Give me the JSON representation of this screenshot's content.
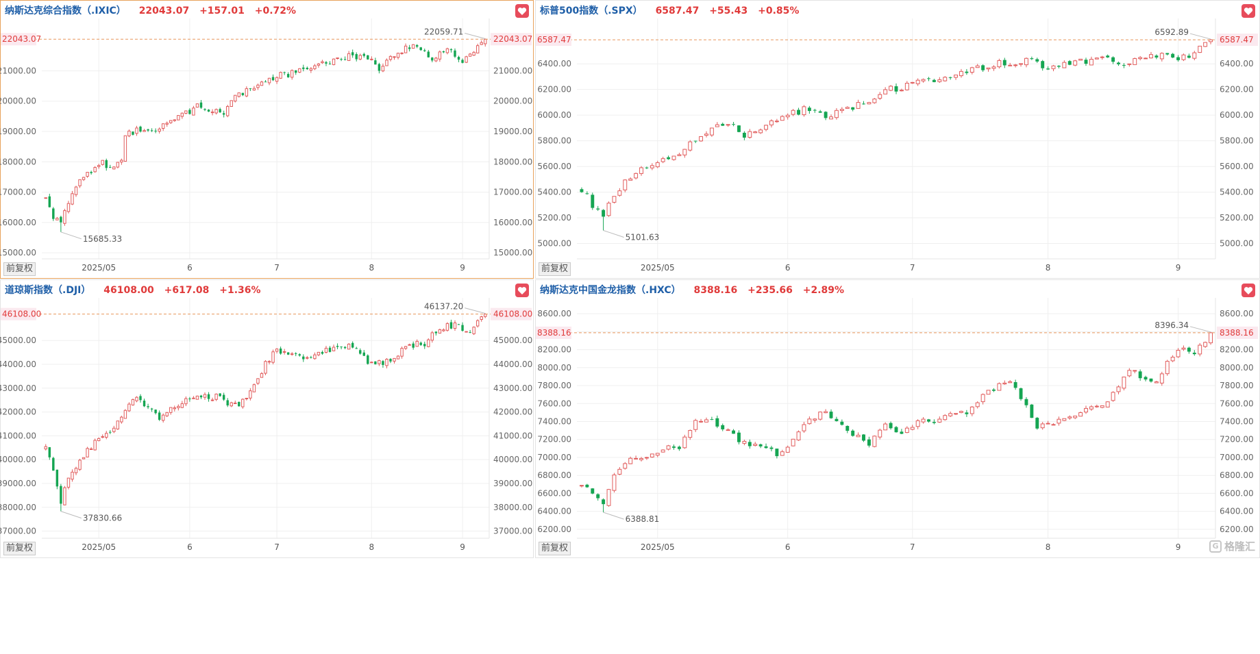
{
  "panels": [
    {
      "name": "纳斯达克综合指数（.IXIC）",
      "price": "22043.07",
      "change": "+157.01",
      "percent": "+0.72%",
      "adjust_button": "前复权",
      "active": true,
      "chart_data": {
        "type": "candlestick",
        "ylim": [
          14800,
          22500
        ],
        "y_ticks": [
          15000,
          16000,
          17000,
          18000,
          19000,
          20000,
          21000
        ],
        "y_tick_labels": [
          "15000.00",
          "16000.00",
          "17000.00",
          "18000.00",
          "19000.00",
          "20000.00",
          "21000.00"
        ],
        "x_ticks": [
          {
            "i": 14,
            "label": "2025/05"
          },
          {
            "i": 38,
            "label": "6"
          },
          {
            "i": 61,
            "label": "7"
          },
          {
            "i": 86,
            "label": "8"
          },
          {
            "i": 110,
            "label": "9"
          }
        ],
        "n_candles": 117,
        "start": 16800,
        "low_point": 15685.33,
        "low_index": 4,
        "anchors": [
          [
            0,
            16800
          ],
          [
            2,
            16200
          ],
          [
            4,
            15900
          ],
          [
            6,
            16700
          ],
          [
            10,
            17500
          ],
          [
            13,
            17700
          ],
          [
            15,
            17950
          ],
          [
            18,
            17800
          ],
          [
            20,
            18000
          ],
          [
            21,
            18800
          ],
          [
            24,
            19100
          ],
          [
            28,
            19000
          ],
          [
            32,
            19200
          ],
          [
            36,
            19500
          ],
          [
            40,
            19800
          ],
          [
            44,
            19700
          ],
          [
            47,
            19600
          ],
          [
            50,
            20100
          ],
          [
            55,
            20500
          ],
          [
            60,
            20800
          ],
          [
            65,
            20900
          ],
          [
            70,
            21100
          ],
          [
            75,
            21300
          ],
          [
            80,
            21500
          ],
          [
            86,
            21350
          ],
          [
            88,
            21100
          ],
          [
            92,
            21500
          ],
          [
            96,
            21800
          ],
          [
            100,
            21700
          ],
          [
            102,
            21400
          ],
          [
            106,
            21650
          ],
          [
            108,
            21550
          ],
          [
            110,
            21200
          ],
          [
            112,
            21600
          ],
          [
            114,
            21800
          ],
          [
            116,
            22043.07
          ]
        ],
        "high_point": 22059.71,
        "last_price": 22043.07,
        "last_price_label": "22043.07",
        "high_label": "22059.71",
        "low_label": "15685.33",
        "colors": {
          "up": "#e15b5b",
          "down": "#15a552",
          "ref_line": "#e8955a",
          "price_tag": "#e03a3a"
        }
      }
    },
    {
      "name": "标普500指数（.SPX）",
      "price": "6587.47",
      "change": "+55.43",
      "percent": "+0.85%",
      "adjust_button": "前复权",
      "active": false,
      "chart_data": {
        "type": "candlestick",
        "ylim": [
          4880,
          6700
        ],
        "y_ticks": [
          5000,
          5200,
          5400,
          5600,
          5800,
          6000,
          6200,
          6400
        ],
        "y_tick_labels": [
          "5000.00",
          "5200.00",
          "5400.00",
          "5600.00",
          "5800.00",
          "6000.00",
          "6200.00",
          "6400.00"
        ],
        "x_ticks": [
          {
            "i": 14,
            "label": "2025/05"
          },
          {
            "i": 38,
            "label": "6"
          },
          {
            "i": 61,
            "label": "7"
          },
          {
            "i": 86,
            "label": "8"
          },
          {
            "i": 110,
            "label": "9"
          }
        ],
        "n_candles": 117,
        "start": 5420,
        "low_point": 5101.63,
        "low_index": 4,
        "anchors": [
          [
            0,
            5420
          ],
          [
            2,
            5300
          ],
          [
            4,
            5200
          ],
          [
            6,
            5380
          ],
          [
            10,
            5560
          ],
          [
            14,
            5650
          ],
          [
            18,
            5700
          ],
          [
            20,
            5800
          ],
          [
            24,
            5900
          ],
          [
            27,
            5950
          ],
          [
            30,
            5850
          ],
          [
            33,
            5900
          ],
          [
            37,
            5980
          ],
          [
            41,
            6040
          ],
          [
            45,
            6000
          ],
          [
            48,
            6020
          ],
          [
            52,
            6100
          ],
          [
            57,
            6200
          ],
          [
            62,
            6250
          ],
          [
            67,
            6300
          ],
          [
            72,
            6350
          ],
          [
            77,
            6400
          ],
          [
            83,
            6420
          ],
          [
            86,
            6350
          ],
          [
            90,
            6400
          ],
          [
            96,
            6450
          ],
          [
            100,
            6400
          ],
          [
            104,
            6450
          ],
          [
            108,
            6480
          ],
          [
            110,
            6420
          ],
          [
            114,
            6520
          ],
          [
            116,
            6587.47
          ]
        ],
        "high_point": 6592.89,
        "last_price": 6587.47,
        "last_price_label": "6587.47",
        "high_label": "6592.89",
        "low_label": "5101.63",
        "colors": {
          "up": "#e15b5b",
          "down": "#15a552",
          "ref_line": "#e8955a",
          "price_tag": "#e03a3a"
        }
      }
    },
    {
      "name": "道琼斯指数（.DJI）",
      "price": "46108.00",
      "change": "+617.08",
      "percent": "+1.36%",
      "adjust_button": "前复权",
      "active": false,
      "chart_data": {
        "type": "candlestick",
        "ylim": [
          36700,
          46500
        ],
        "y_ticks": [
          37000,
          38000,
          39000,
          40000,
          41000,
          42000,
          43000,
          44000,
          45000
        ],
        "y_tick_labels": [
          "37000.00",
          "38000.00",
          "39000.00",
          "40000.00",
          "41000.00",
          "42000.00",
          "43000.00",
          "44000.00",
          "45000.00"
        ],
        "x_ticks": [
          {
            "i": 14,
            "label": "2025/05"
          },
          {
            "i": 38,
            "label": "6"
          },
          {
            "i": 61,
            "label": "7"
          },
          {
            "i": 86,
            "label": "8"
          },
          {
            "i": 110,
            "label": "9"
          }
        ],
        "n_candles": 117,
        "start": 40500,
        "low_point": 37830.66,
        "low_index": 4,
        "anchors": [
          [
            0,
            40500
          ],
          [
            2,
            39500
          ],
          [
            4,
            38200
          ],
          [
            6,
            39300
          ],
          [
            9,
            40000
          ],
          [
            12,
            40500
          ],
          [
            15,
            41000
          ],
          [
            18,
            41200
          ],
          [
            21,
            42200
          ],
          [
            24,
            42500
          ],
          [
            27,
            42100
          ],
          [
            30,
            41700
          ],
          [
            34,
            42200
          ],
          [
            38,
            42500
          ],
          [
            42,
            42700
          ],
          [
            46,
            42600
          ],
          [
            49,
            42300
          ],
          [
            52,
            42400
          ],
          [
            55,
            43100
          ],
          [
            58,
            44000
          ],
          [
            61,
            44600
          ],
          [
            64,
            44500
          ],
          [
            68,
            44300
          ],
          [
            72,
            44400
          ],
          [
            76,
            44700
          ],
          [
            80,
            44800
          ],
          [
            83,
            44400
          ],
          [
            86,
            44000
          ],
          [
            90,
            44100
          ],
          [
            94,
            44600
          ],
          [
            98,
            44900
          ],
          [
            100,
            44900
          ],
          [
            103,
            45400
          ],
          [
            106,
            45600
          ],
          [
            109,
            45600
          ],
          [
            111,
            45300
          ],
          [
            114,
            45700
          ],
          [
            116,
            46108
          ]
        ],
        "high_point": 46137.2,
        "last_price": 46108.0,
        "last_price_label": "46108.00",
        "high_label": "46137.20",
        "low_label": "37830.66",
        "colors": {
          "up": "#e15b5b",
          "down": "#15a552",
          "ref_line": "#e8955a",
          "price_tag": "#e03a3a"
        }
      }
    },
    {
      "name": "纳斯达克中国金龙指数（.HXC）",
      "price": "8388.16",
      "change": "+235.66",
      "percent": "+2.89%",
      "adjust_button": "前复权",
      "active": false,
      "chart_data": {
        "type": "candlestick",
        "ylim": [
          6100,
          8700
        ],
        "y_ticks": [
          6200,
          6400,
          6600,
          6800,
          7000,
          7200,
          7400,
          7600,
          7800,
          8000,
          8200,
          8400,
          8600
        ],
        "y_tick_labels": [
          "6200.00",
          "6400.00",
          "6600.00",
          "6800.00",
          "7000.00",
          "7200.00",
          "7400.00",
          "7600.00",
          "7800.00",
          "8000.00",
          "8200.00",
          "8400.00",
          "8600.00"
        ],
        "x_ticks": [
          {
            "i": 14,
            "label": "2025/05"
          },
          {
            "i": 38,
            "label": "6"
          },
          {
            "i": 61,
            "label": "7"
          },
          {
            "i": 86,
            "label": "8"
          },
          {
            "i": 110,
            "label": "9"
          }
        ],
        "n_candles": 117,
        "start": 6700,
        "low_point": 6388.81,
        "low_index": 4,
        "anchors": [
          [
            0,
            6700
          ],
          [
            2,
            6600
          ],
          [
            4,
            6500
          ],
          [
            6,
            6800
          ],
          [
            8,
            6950
          ],
          [
            12,
            7000
          ],
          [
            15,
            7100
          ],
          [
            18,
            7100
          ],
          [
            21,
            7400
          ],
          [
            24,
            7420
          ],
          [
            27,
            7300
          ],
          [
            30,
            7150
          ],
          [
            33,
            7100
          ],
          [
            36,
            7050
          ],
          [
            39,
            7200
          ],
          [
            42,
            7400
          ],
          [
            45,
            7500
          ],
          [
            47,
            7400
          ],
          [
            50,
            7250
          ],
          [
            53,
            7150
          ],
          [
            56,
            7350
          ],
          [
            59,
            7300
          ],
          [
            62,
            7400
          ],
          [
            65,
            7380
          ],
          [
            68,
            7500
          ],
          [
            71,
            7500
          ],
          [
            74,
            7700
          ],
          [
            77,
            7800
          ],
          [
            79,
            7850
          ],
          [
            81,
            7650
          ],
          [
            84,
            7350
          ],
          [
            87,
            7400
          ],
          [
            90,
            7450
          ],
          [
            93,
            7550
          ],
          [
            96,
            7600
          ],
          [
            99,
            7750
          ],
          [
            101,
            8000
          ],
          [
            103,
            7900
          ],
          [
            106,
            7850
          ],
          [
            108,
            8050
          ],
          [
            111,
            8250
          ],
          [
            113,
            8150
          ],
          [
            116,
            8388.16
          ]
        ],
        "high_point": 8396.34,
        "last_price": 8388.16,
        "last_price_label": "8388.16",
        "high_label": "8396.34",
        "low_label": "6388.81",
        "colors": {
          "up": "#e15b5b",
          "down": "#15a552",
          "ref_line": "#e8955a",
          "price_tag": "#e03a3a"
        }
      }
    }
  ],
  "watermark": {
    "text": "格隆汇",
    "icon": "gelonghui-logo-icon"
  }
}
